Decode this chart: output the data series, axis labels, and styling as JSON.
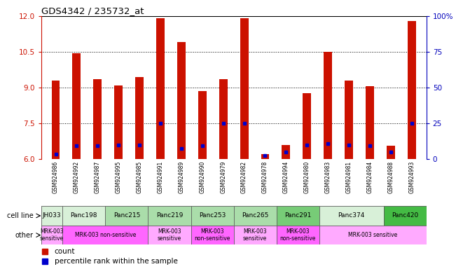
{
  "title": "GDS4342 / 235732_at",
  "samples": [
    "GSM924986",
    "GSM924992",
    "GSM924987",
    "GSM924995",
    "GSM924985",
    "GSM924991",
    "GSM924989",
    "GSM924990",
    "GSM924979",
    "GSM924982",
    "GSM924978",
    "GSM924994",
    "GSM924980",
    "GSM924983",
    "GSM924981",
    "GSM924984",
    "GSM924988",
    "GSM924993"
  ],
  "counts": [
    9.3,
    10.45,
    9.35,
    9.1,
    9.45,
    11.9,
    10.9,
    8.85,
    9.35,
    11.9,
    6.2,
    6.6,
    8.75,
    10.5,
    9.3,
    9.05,
    6.55,
    11.8
  ],
  "percentile_values": [
    6.2,
    6.55,
    6.55,
    6.6,
    6.6,
    7.5,
    6.45,
    6.55,
    7.5,
    7.5,
    6.15,
    6.3,
    6.6,
    6.65,
    6.6,
    6.55,
    6.3,
    7.5
  ],
  "cell_lines": [
    {
      "name": "JH033",
      "start": 0,
      "end": 1,
      "color": "#d8f0d8"
    },
    {
      "name": "Panc198",
      "start": 1,
      "end": 3,
      "color": "#d8f0d8"
    },
    {
      "name": "Panc215",
      "start": 3,
      "end": 5,
      "color": "#aaddaa"
    },
    {
      "name": "Panc219",
      "start": 5,
      "end": 7,
      "color": "#aaddaa"
    },
    {
      "name": "Panc253",
      "start": 7,
      "end": 9,
      "color": "#aaddaa"
    },
    {
      "name": "Panc265",
      "start": 9,
      "end": 11,
      "color": "#aaddaa"
    },
    {
      "name": "Panc291",
      "start": 11,
      "end": 13,
      "color": "#77cc77"
    },
    {
      "name": "Panc374",
      "start": 13,
      "end": 16,
      "color": "#d8f0d8"
    },
    {
      "name": "Panc420",
      "start": 16,
      "end": 18,
      "color": "#44bb44"
    }
  ],
  "other_labels": [
    {
      "label": "MRK-003\nsensitive",
      "start": 0,
      "end": 1,
      "color": "#ffaaff"
    },
    {
      "label": "MRK-003 non-sensitive",
      "start": 1,
      "end": 5,
      "color": "#ff66ff"
    },
    {
      "label": "MRK-003\nsensitive",
      "start": 5,
      "end": 7,
      "color": "#ffaaff"
    },
    {
      "label": "MRK-003\nnon-sensitive",
      "start": 7,
      "end": 9,
      "color": "#ff66ff"
    },
    {
      "label": "MRK-003\nsensitive",
      "start": 9,
      "end": 11,
      "color": "#ffaaff"
    },
    {
      "label": "MRK-003\nnon-sensitive",
      "start": 11,
      "end": 13,
      "color": "#ff66ff"
    },
    {
      "label": "MRK-003 sensitive",
      "start": 13,
      "end": 18,
      "color": "#ffaaff"
    }
  ],
  "ylim": [
    6,
    12
  ],
  "yticks": [
    6,
    7.5,
    9,
    10.5,
    12
  ],
  "right_ytick_vals": [
    0,
    25,
    50,
    75,
    100
  ],
  "bar_color": "#cc1100",
  "percentile_color": "#0000cc",
  "bar_width": 0.4,
  "axis_color_left": "#cc1100",
  "axis_color_right": "#0000bb",
  "grid_yticks": [
    7.5,
    9.0,
    10.5
  ]
}
